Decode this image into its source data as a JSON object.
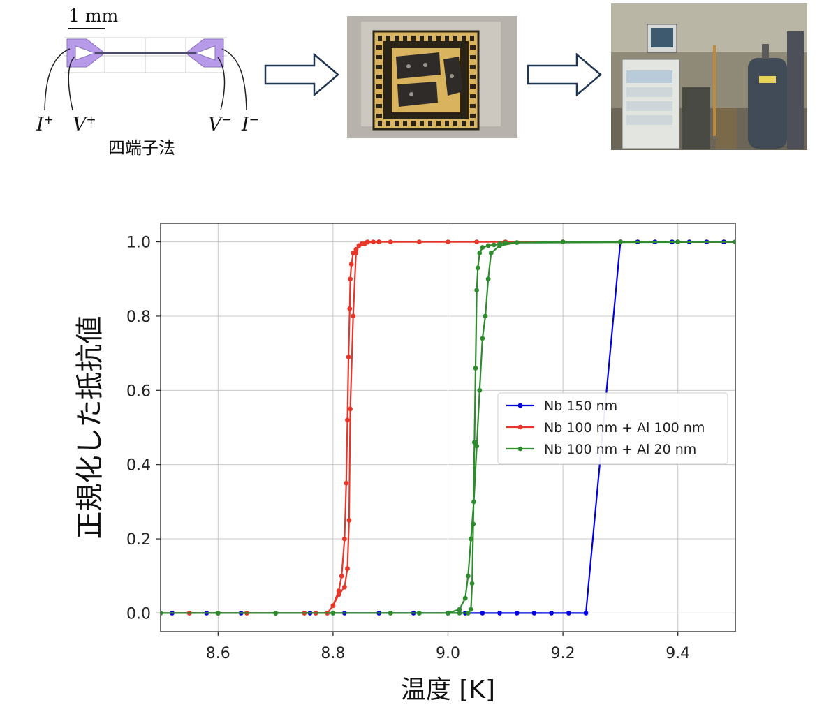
{
  "top": {
    "scale_bar_label": "1 mm",
    "terminals": [
      {
        "sym": "I",
        "sup": "+"
      },
      {
        "sym": "V",
        "sup": "+"
      },
      {
        "sym": "V",
        "sup": "−"
      },
      {
        "sym": "I",
        "sup": "−"
      }
    ],
    "method_label": "四端子法",
    "icons": [
      "arrow-right-icon",
      "arrow-right-icon"
    ],
    "colors": {
      "electrode": "#b79be8",
      "arrow_outline": "#1f3550",
      "chip_gold": "#d9b35e"
    }
  },
  "chart_data": {
    "type": "line",
    "xlabel": "温度 [K]",
    "ylabel": "正規化した抵抗値",
    "xlim": [
      8.5,
      9.5
    ],
    "ylim": [
      -0.05,
      1.05
    ],
    "xticks": [
      "8.6",
      "8.8",
      "9.0",
      "9.2",
      "9.4"
    ],
    "yticks": [
      "0.0",
      "0.2",
      "0.4",
      "0.6",
      "0.8",
      "1.0"
    ],
    "grid": true,
    "legend_position": "center-right",
    "series": [
      {
        "name": "Nb 150 nm",
        "color": "#0000e0",
        "points": [
          [
            8.52,
            0
          ],
          [
            8.58,
            0
          ],
          [
            8.64,
            0
          ],
          [
            8.7,
            0
          ],
          [
            8.76,
            0
          ],
          [
            8.82,
            0
          ],
          [
            8.88,
            0
          ],
          [
            8.94,
            0
          ],
          [
            9.0,
            0
          ],
          [
            9.03,
            0
          ],
          [
            9.06,
            0
          ],
          [
            9.09,
            0
          ],
          [
            9.12,
            0
          ],
          [
            9.15,
            0
          ],
          [
            9.18,
            0
          ],
          [
            9.21,
            0
          ],
          [
            9.24,
            0
          ],
          [
            9.3,
            1.0
          ],
          [
            9.33,
            1.0
          ],
          [
            9.36,
            1.0
          ],
          [
            9.39,
            1.0
          ],
          [
            9.42,
            1.0
          ],
          [
            9.45,
            1.0
          ],
          [
            9.48,
            1.0
          ],
          [
            9.5,
            1.0
          ]
        ]
      },
      {
        "name": "Nb 100 nm + Al 100 nm",
        "color": "#e8352a",
        "points": [
          [
            8.5,
            0
          ],
          [
            8.55,
            0
          ],
          [
            8.6,
            0
          ],
          [
            8.65,
            0
          ],
          [
            8.7,
            0
          ],
          [
            8.75,
            0
          ],
          [
            8.77,
            0
          ],
          [
            8.79,
            0
          ],
          [
            8.8,
            0.02
          ],
          [
            8.81,
            0.06
          ],
          [
            8.815,
            0.1
          ],
          [
            8.82,
            0.2
          ],
          [
            8.823,
            0.35
          ],
          [
            8.825,
            0.52
          ],
          [
            8.827,
            0.69
          ],
          [
            8.829,
            0.82
          ],
          [
            8.83,
            0.9
          ],
          [
            8.832,
            0.94
          ],
          [
            8.835,
            0.97
          ],
          [
            8.84,
            0.98
          ],
          [
            8.845,
            0.99
          ],
          [
            8.85,
            0.995
          ],
          [
            8.86,
            1.0
          ],
          [
            8.87,
            1.0
          ],
          [
            8.88,
            1.0
          ],
          [
            8.9,
            1.0
          ],
          [
            8.95,
            1.0
          ],
          [
            9.0,
            1.0
          ],
          [
            9.05,
            1.0
          ],
          [
            9.1,
            1.0
          ],
          [
            9.2,
            1.0
          ],
          [
            9.3,
            1.0
          ],
          [
            9.4,
            1.0
          ],
          [
            9.5,
            1.0
          ],
          [
            9.5,
            1.0
          ],
          [
            8.88,
            1.0
          ],
          [
            8.86,
            0.999
          ],
          [
            8.855,
            0.995
          ],
          [
            8.845,
            0.99
          ],
          [
            8.84,
            0.97
          ],
          [
            8.835,
            0.8
          ],
          [
            8.83,
            0.55
          ],
          [
            8.828,
            0.25
          ],
          [
            8.825,
            0.12
          ],
          [
            8.82,
            0.07
          ],
          [
            8.81,
            0.05
          ],
          [
            8.8,
            0.02
          ],
          [
            8.79,
            0
          ],
          [
            8.77,
            0
          ],
          [
            8.75,
            0
          ],
          [
            8.7,
            0
          ],
          [
            8.65,
            0
          ],
          [
            8.6,
            0
          ],
          [
            8.55,
            0
          ],
          [
            8.5,
            0
          ]
        ]
      },
      {
        "name": "Nb 100 nm + Al 20 nm",
        "color": "#2e8b2e",
        "points": [
          [
            8.5,
            0
          ],
          [
            8.6,
            0
          ],
          [
            8.7,
            0
          ],
          [
            8.8,
            0
          ],
          [
            8.9,
            0
          ],
          [
            8.95,
            0
          ],
          [
            9.0,
            0
          ],
          [
            9.02,
            0
          ],
          [
            9.035,
            0
          ],
          [
            9.04,
            0.01
          ],
          [
            9.042,
            0.08
          ],
          [
            9.044,
            0.24
          ],
          [
            9.046,
            0.46
          ],
          [
            9.048,
            0.66
          ],
          [
            9.05,
            0.87
          ],
          [
            9.052,
            0.93
          ],
          [
            9.055,
            0.97
          ],
          [
            9.06,
            0.985
          ],
          [
            9.07,
            0.99
          ],
          [
            9.08,
            0.992
          ],
          [
            9.09,
            0.995
          ],
          [
            9.1,
            0.997
          ],
          [
            9.12,
            0.998
          ],
          [
            9.2,
            1.0
          ],
          [
            9.3,
            1.0
          ],
          [
            9.4,
            1.0
          ],
          [
            9.5,
            1.0
          ],
          [
            9.5,
            1.0
          ],
          [
            9.12,
            0.998
          ],
          [
            9.09,
            0.99
          ],
          [
            9.075,
            0.97
          ],
          [
            9.07,
            0.9
          ],
          [
            9.065,
            0.8
          ],
          [
            9.06,
            0.74
          ],
          [
            9.055,
            0.6
          ],
          [
            9.05,
            0.45
          ],
          [
            9.045,
            0.3
          ],
          [
            9.04,
            0.2
          ],
          [
            9.035,
            0.1
          ],
          [
            9.03,
            0.04
          ],
          [
            9.02,
            0.01
          ],
          [
            9.0,
            0
          ],
          [
            8.95,
            0
          ],
          [
            8.9,
            0
          ],
          [
            8.8,
            0
          ],
          [
            8.7,
            0
          ],
          [
            8.6,
            0
          ],
          [
            8.5,
            0
          ]
        ]
      }
    ]
  }
}
